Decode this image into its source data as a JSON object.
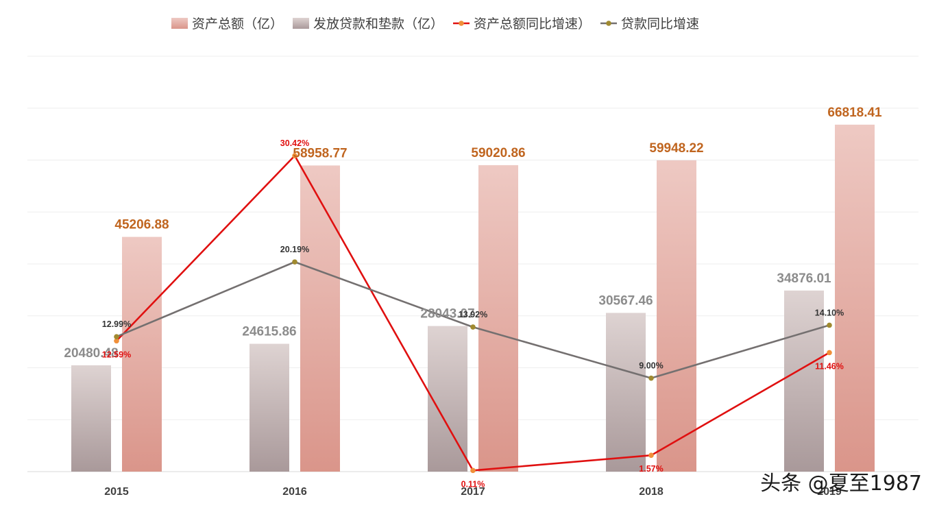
{
  "chart_data": {
    "type": "bar",
    "categories": [
      "2015",
      "2016",
      "2017",
      "2018",
      "2019"
    ],
    "series": [
      {
        "name": "发放贷款和垫款（亿）",
        "kind": "bar",
        "axis": "left",
        "values": [
          20480.48,
          24615.86,
          28043.07,
          30567.46,
          34876.01
        ],
        "labels": [
          "20480.48",
          "24615.86",
          "28043.07",
          "30567.46",
          "34876.01"
        ],
        "color": "#b09c9b",
        "label_color": "#8c8c8c"
      },
      {
        "name": "资产总额（亿）",
        "kind": "bar",
        "axis": "left",
        "values": [
          45206.88,
          58958.77,
          59020.86,
          59948.22,
          66818.41
        ],
        "labels": [
          "45206.88",
          "58958.77",
          "59020.86",
          "59948.22",
          "66818.41"
        ],
        "color": "#e0998d",
        "label_color": "#c0651f"
      },
      {
        "name": "资产总额同比增速）",
        "kind": "line",
        "axis": "right",
        "values": [
          12.59,
          30.42,
          0.11,
          1.57,
          11.46
        ],
        "labels": [
          "12.59%",
          "30.42%",
          "0.11%",
          "1.57%",
          "11.46%"
        ],
        "color": "#e01010",
        "marker_color": "#f0903a",
        "label_color": "#e01010"
      },
      {
        "name": "贷款同比增速",
        "kind": "line",
        "axis": "right",
        "values": [
          12.99,
          20.19,
          13.92,
          9.0,
          14.1
        ],
        "labels": [
          "12.99%",
          "20.19%",
          "13.92%",
          "9.00%",
          "14.10%"
        ],
        "color": "#747070",
        "marker_color": "#a08a30",
        "label_color": "#333333"
      }
    ],
    "ylim_left": [
      0,
      80000
    ],
    "ylim_right": [
      0,
      40
    ],
    "grid": true,
    "legend": "top",
    "title": "",
    "xlabel": "",
    "ylabel": ""
  },
  "watermark": {
    "text": "头条 @夏至1987"
  }
}
